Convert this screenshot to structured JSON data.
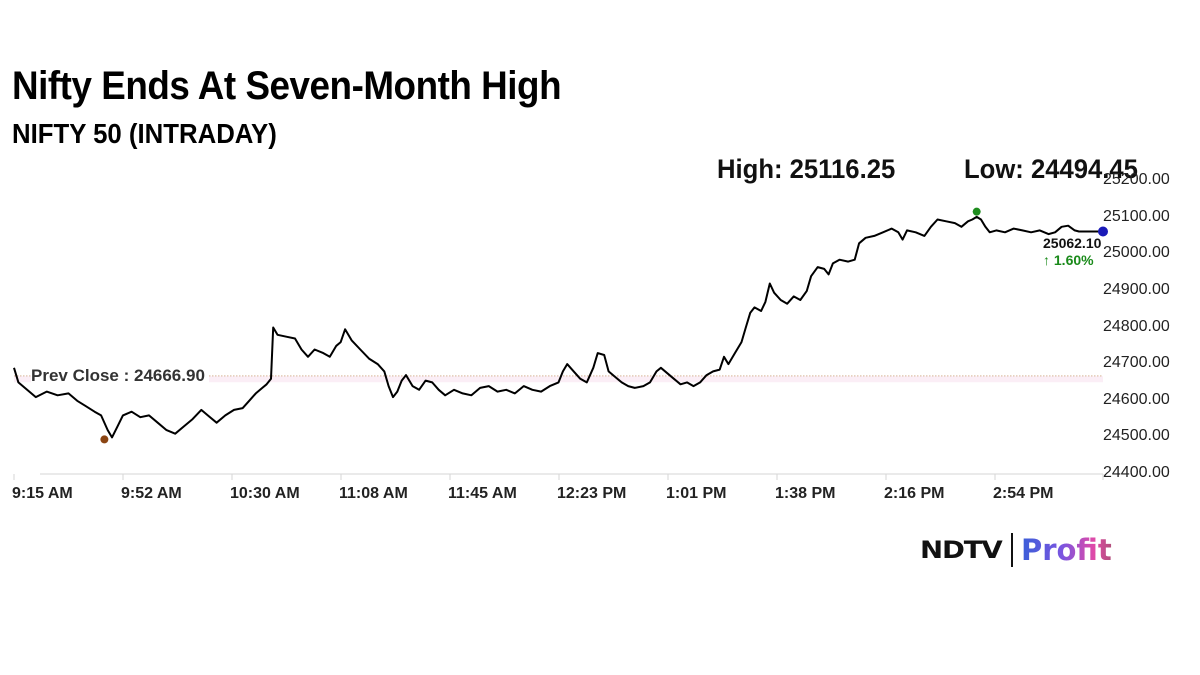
{
  "header": {
    "title": "Nifty Ends At Seven-Month High",
    "subtitle": "NIFTY 50 (INTRADAY)",
    "high_label": "High: 25116.25",
    "low_label": "Low: 24494.45"
  },
  "annotations": {
    "prev_close_label": "Prev Close : 24666.90",
    "last_value": "25062.10",
    "last_change": "↑ 1.60%"
  },
  "brand": {
    "left": "NDTV",
    "right": "Profit"
  },
  "colors": {
    "line": "#000000",
    "prev_close_line": "#c08a5a",
    "low_marker": "#8b4513",
    "high_marker": "#1e8c1e",
    "last_marker": "#1a1ab8",
    "change_up": "#1a8a1a",
    "grid": "#d6d6d6"
  },
  "chart_data": {
    "type": "line",
    "title": "Nifty Ends At Seven-Month High",
    "subtitle": "NIFTY 50 (INTRADAY)",
    "xlabel": "",
    "ylabel": "",
    "ylim": [
      24400,
      25200
    ],
    "yticks": [
      "25200.00",
      "25100.00",
      "25000.00",
      "24900.00",
      "24800.00",
      "24700.00",
      "24600.00",
      "24500.00",
      "24400.00"
    ],
    "xticks": [
      "9:15 AM",
      "9:52 AM",
      "10:30 AM",
      "11:08 AM",
      "11:45 AM",
      "12:23 PM",
      "1:01 PM",
      "1:38 PM",
      "2:16 PM",
      "2:54 PM"
    ],
    "grid": false,
    "legend": null,
    "prev_close": 24666.9,
    "high": 25116.25,
    "low": 24494.45,
    "close": 25062.1,
    "change_pct": 1.6,
    "series": [
      {
        "name": "NIFTY 50",
        "points": [
          [
            0.0,
            24690
          ],
          [
            0.004,
            24650
          ],
          [
            0.012,
            24630
          ],
          [
            0.02,
            24610
          ],
          [
            0.03,
            24625
          ],
          [
            0.04,
            24615
          ],
          [
            0.05,
            24620
          ],
          [
            0.058,
            24600
          ],
          [
            0.066,
            24585
          ],
          [
            0.074,
            24570
          ],
          [
            0.08,
            24560
          ],
          [
            0.086,
            24520
          ],
          [
            0.09,
            24500
          ],
          [
            0.095,
            24530
          ],
          [
            0.1,
            24560
          ],
          [
            0.108,
            24570
          ],
          [
            0.116,
            24555
          ],
          [
            0.124,
            24560
          ],
          [
            0.132,
            24540
          ],
          [
            0.14,
            24520
          ],
          [
            0.148,
            24510
          ],
          [
            0.156,
            24530
          ],
          [
            0.164,
            24550
          ],
          [
            0.172,
            24575
          ],
          [
            0.178,
            24560
          ],
          [
            0.186,
            24540
          ],
          [
            0.194,
            24560
          ],
          [
            0.202,
            24575
          ],
          [
            0.21,
            24580
          ],
          [
            0.216,
            24600
          ],
          [
            0.222,
            24620
          ],
          [
            0.228,
            24635
          ],
          [
            0.232,
            24645
          ],
          [
            0.236,
            24660
          ],
          [
            0.238,
            24800
          ],
          [
            0.242,
            24780
          ],
          [
            0.25,
            24775
          ],
          [
            0.258,
            24770
          ],
          [
            0.264,
            24740
          ],
          [
            0.27,
            24720
          ],
          [
            0.276,
            24740
          ],
          [
            0.284,
            24730
          ],
          [
            0.29,
            24720
          ],
          [
            0.296,
            24750
          ],
          [
            0.3,
            24760
          ],
          [
            0.304,
            24795
          ],
          [
            0.31,
            24765
          ],
          [
            0.318,
            24740
          ],
          [
            0.326,
            24715
          ],
          [
            0.334,
            24700
          ],
          [
            0.34,
            24680
          ],
          [
            0.344,
            24640
          ],
          [
            0.348,
            24610
          ],
          [
            0.352,
            24625
          ],
          [
            0.356,
            24655
          ],
          [
            0.36,
            24670
          ],
          [
            0.366,
            24640
          ],
          [
            0.372,
            24630
          ],
          [
            0.378,
            24655
          ],
          [
            0.384,
            24650
          ],
          [
            0.39,
            24630
          ],
          [
            0.396,
            24615
          ],
          [
            0.404,
            24630
          ],
          [
            0.412,
            24620
          ],
          [
            0.42,
            24615
          ],
          [
            0.428,
            24635
          ],
          [
            0.436,
            24640
          ],
          [
            0.444,
            24625
          ],
          [
            0.452,
            24630
          ],
          [
            0.46,
            24620
          ],
          [
            0.468,
            24640
          ],
          [
            0.476,
            24630
          ],
          [
            0.484,
            24625
          ],
          [
            0.492,
            24640
          ],
          [
            0.5,
            24650
          ],
          [
            0.504,
            24680
          ],
          [
            0.508,
            24700
          ],
          [
            0.514,
            24680
          ],
          [
            0.52,
            24660
          ],
          [
            0.526,
            24650
          ],
          [
            0.532,
            24690
          ],
          [
            0.536,
            24730
          ],
          [
            0.542,
            24725
          ],
          [
            0.546,
            24680
          ],
          [
            0.552,
            24665
          ],
          [
            0.558,
            24650
          ],
          [
            0.564,
            24640
          ],
          [
            0.57,
            24635
          ],
          [
            0.578,
            24640
          ],
          [
            0.584,
            24650
          ],
          [
            0.59,
            24680
          ],
          [
            0.594,
            24690
          ],
          [
            0.6,
            24675
          ],
          [
            0.606,
            24660
          ],
          [
            0.612,
            24645
          ],
          [
            0.618,
            24650
          ],
          [
            0.624,
            24640
          ],
          [
            0.63,
            24650
          ],
          [
            0.636,
            24670
          ],
          [
            0.642,
            24680
          ],
          [
            0.648,
            24685
          ],
          [
            0.652,
            24720
          ],
          [
            0.656,
            24700
          ],
          [
            0.662,
            24730
          ],
          [
            0.668,
            24760
          ],
          [
            0.672,
            24800
          ],
          [
            0.676,
            24840
          ],
          [
            0.68,
            24855
          ],
          [
            0.686,
            24845
          ],
          [
            0.69,
            24870
          ],
          [
            0.694,
            24920
          ],
          [
            0.698,
            24895
          ],
          [
            0.704,
            24875
          ],
          [
            0.71,
            24865
          ],
          [
            0.716,
            24885
          ],
          [
            0.722,
            24875
          ],
          [
            0.728,
            24900
          ],
          [
            0.732,
            24940
          ],
          [
            0.738,
            24965
          ],
          [
            0.744,
            24960
          ],
          [
            0.748,
            24945
          ],
          [
            0.752,
            24975
          ],
          [
            0.758,
            24985
          ],
          [
            0.766,
            24980
          ],
          [
            0.772,
            24985
          ],
          [
            0.776,
            25030
          ],
          [
            0.782,
            25045
          ],
          [
            0.79,
            25050
          ],
          [
            0.798,
            25060
          ],
          [
            0.806,
            25070
          ],
          [
            0.812,
            25060
          ],
          [
            0.816,
            25040
          ],
          [
            0.82,
            25065
          ],
          [
            0.828,
            25060
          ],
          [
            0.836,
            25050
          ],
          [
            0.842,
            25075
          ],
          [
            0.848,
            25095
          ],
          [
            0.856,
            25090
          ],
          [
            0.864,
            25085
          ],
          [
            0.87,
            25075
          ],
          [
            0.876,
            25090
          ],
          [
            0.88,
            25095
          ],
          [
            0.884,
            25102
          ],
          [
            0.888,
            25095
          ],
          [
            0.892,
            25075
          ],
          [
            0.896,
            25060
          ],
          [
            0.902,
            25065
          ],
          [
            0.91,
            25060
          ],
          [
            0.918,
            25070
          ],
          [
            0.926,
            25065
          ],
          [
            0.934,
            25060
          ],
          [
            0.942,
            25065
          ],
          [
            0.95,
            25055
          ],
          [
            0.956,
            25060
          ],
          [
            0.962,
            25075
          ],
          [
            0.968,
            25078
          ],
          [
            0.974,
            25065
          ],
          [
            0.978,
            25062.1
          ],
          [
            1.0,
            25062.1
          ]
        ]
      }
    ],
    "markers": [
      {
        "label": "low",
        "x": 0.083,
        "value": 24494.45
      },
      {
        "label": "high",
        "x": 0.884,
        "value": 25116.25
      },
      {
        "label": "last",
        "x": 1.0,
        "value": 25062.1
      }
    ]
  }
}
